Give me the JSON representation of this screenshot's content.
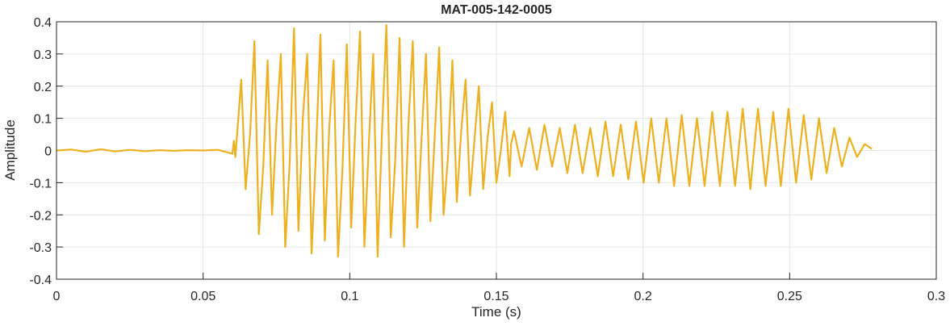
{
  "chart_data": {
    "type": "line",
    "title": "MAT-005-142-0005",
    "xlabel": "Time (s)",
    "ylabel": "Amplitude",
    "xlim": [
      0,
      0.3
    ],
    "xticks": [
      0,
      0.05,
      0.1,
      0.15,
      0.2,
      0.25,
      0.3
    ],
    "ylim": [
      -0.4,
      0.4
    ],
    "yticks": [
      -0.4,
      -0.3,
      -0.2,
      -0.1,
      0,
      0.1,
      0.2,
      0.3,
      0.4
    ],
    "grid": true,
    "x": [
      0,
      0.005,
      0.01,
      0.015,
      0.02,
      0.025,
      0.03,
      0.035,
      0.04,
      0.045,
      0.05,
      0.055,
      0.06,
      0.0605,
      0.061,
      0.0615,
      0.063,
      0.0645,
      0.066,
      0.0675,
      0.069,
      0.0705,
      0.072,
      0.0735,
      0.075,
      0.0765,
      0.078,
      0.0795,
      0.081,
      0.0825,
      0.084,
      0.0855,
      0.087,
      0.0885,
      0.09,
      0.0915,
      0.093,
      0.0945,
      0.096,
      0.0975,
      0.099,
      0.1005,
      0.102,
      0.1035,
      0.105,
      0.1065,
      0.108,
      0.1095,
      0.111,
      0.1125,
      0.114,
      0.1155,
      0.117,
      0.1185,
      0.12,
      0.1215,
      0.123,
      0.1245,
      0.126,
      0.1275,
      0.129,
      0.1305,
      0.132,
      0.1335,
      0.135,
      0.1365,
      0.138,
      0.1395,
      0.141,
      0.1425,
      0.144,
      0.1455,
      0.147,
      0.1485,
      0.15,
      0.1515,
      0.153,
      0.1545,
      0.155,
      0.156,
      0.1586,
      0.1612,
      0.1638,
      0.1664,
      0.169,
      0.1716,
      0.1742,
      0.1768,
      0.1794,
      0.182,
      0.1846,
      0.1872,
      0.1898,
      0.1924,
      0.195,
      0.1976,
      0.2002,
      0.2028,
      0.2054,
      0.208,
      0.2106,
      0.2132,
      0.2158,
      0.2184,
      0.221,
      0.2236,
      0.2262,
      0.2288,
      0.2314,
      0.234,
      0.2366,
      0.2392,
      0.2418,
      0.2444,
      0.247,
      0.2496,
      0.2522,
      0.2548,
      0.2574,
      0.26,
      0.2626,
      0.2652,
      0.2678,
      0.2704,
      0.273,
      0.2756,
      0.278
    ],
    "series": [
      {
        "color": "#EDB120",
        "values": [
          0,
          0.003,
          -0.004,
          0.004,
          -0.003,
          0.002,
          -0.002,
          0.001,
          -0.001,
          0.001,
          0,
          0.002,
          -0.01,
          0.03,
          -0.02,
          0.04,
          0.22,
          -0.12,
          0.05,
          0.34,
          -0.26,
          -0.05,
          0.28,
          -0.2,
          0.08,
          0.3,
          -0.3,
          -0.04,
          0.38,
          -0.25,
          0.1,
          0.3,
          -0.32,
          0,
          0.36,
          -0.28,
          0.07,
          0.28,
          -0.33,
          -0.06,
          0.33,
          -0.24,
          0.09,
          0.37,
          -0.3,
          0.02,
          0.3,
          -0.33,
          0.06,
          0.39,
          -0.27,
          -0.03,
          0.35,
          -0.3,
          0.08,
          0.34,
          -0.24,
          0.04,
          0.3,
          -0.22,
          0.05,
          0.32,
          -0.2,
          -0.02,
          0.28,
          -0.16,
          0.06,
          0.22,
          -0.14,
          0.03,
          0.2,
          -0.12,
          0.04,
          0.15,
          -0.1,
          0,
          0.12,
          -0.08,
          0.02,
          0.06,
          -0.05,
          0.07,
          -0.06,
          0.08,
          -0.05,
          0.07,
          -0.07,
          0.08,
          -0.07,
          0.07,
          -0.08,
          0.09,
          -0.08,
          0.08,
          -0.09,
          0.09,
          -0.1,
          0.1,
          -0.1,
          0.1,
          -0.11,
          0.11,
          -0.11,
          0.1,
          -0.11,
          0.12,
          -0.11,
          0.12,
          -0.11,
          0.13,
          -0.12,
          0.13,
          -0.11,
          0.12,
          -0.11,
          0.13,
          -0.1,
          0.11,
          -0.09,
          0.1,
          -0.07,
          0.07,
          -0.05,
          0.04,
          -0.02,
          0.02,
          0.005
        ]
      }
    ]
  }
}
